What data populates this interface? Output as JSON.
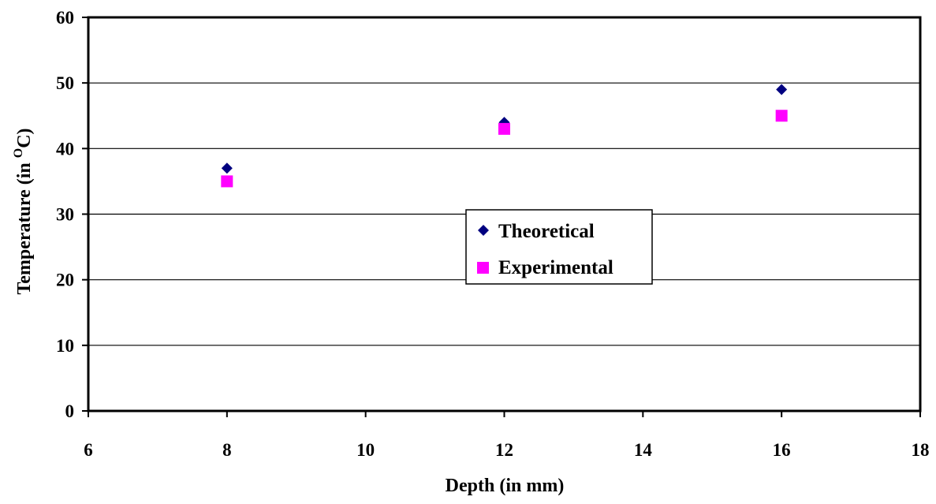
{
  "chart_data": {
    "type": "scatter",
    "xlabel": "Depth (in mm)",
    "ylabel": {
      "prefix": "Temperature (in ",
      "superscript": "O",
      "suffix": "C)"
    },
    "xlim": [
      6,
      18
    ],
    "ylim": [
      0,
      60
    ],
    "xticks": [
      "6",
      "8",
      "10",
      "12",
      "14",
      "16",
      "18"
    ],
    "yticks": [
      "0",
      "10",
      "20",
      "30",
      "40",
      "50",
      "60"
    ],
    "grid": "horizontal",
    "legend_position": "center-right",
    "series": [
      {
        "name": "Theoretical",
        "marker": "diamond",
        "color": "#000080",
        "points": [
          {
            "x": 8,
            "y": 37
          },
          {
            "x": 12,
            "y": 44
          },
          {
            "x": 16,
            "y": 49
          }
        ]
      },
      {
        "name": "Experimental",
        "marker": "square",
        "color": "#ff00ff",
        "points": [
          {
            "x": 8,
            "y": 35
          },
          {
            "x": 12,
            "y": 43
          },
          {
            "x": 16,
            "y": 45
          }
        ]
      }
    ]
  }
}
